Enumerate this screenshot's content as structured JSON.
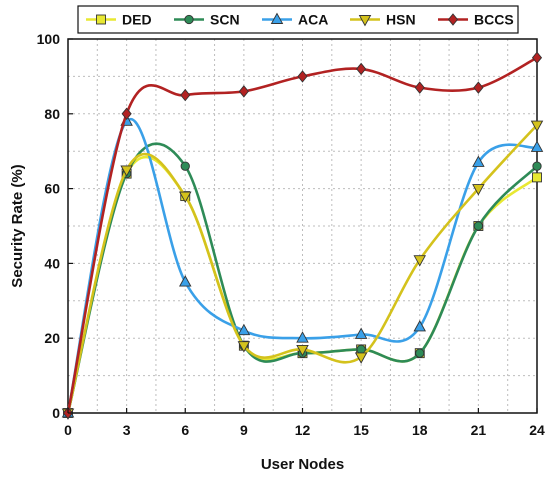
{
  "chart_data": {
    "type": "line",
    "xlabel": "User Nodes",
    "ylabel": "Security Rate (%)",
    "xlim": [
      0,
      24
    ],
    "ylim": [
      0,
      100
    ],
    "x_ticks": [
      0,
      3,
      6,
      9,
      12,
      15,
      18,
      21,
      24
    ],
    "y_ticks": [
      0,
      20,
      40,
      60,
      80,
      100
    ],
    "grid": true,
    "legend_position": "top",
    "x": [
      0,
      3,
      6,
      9,
      12,
      15,
      18,
      21,
      24
    ],
    "series": [
      {
        "name": "DED",
        "values": [
          0,
          64,
          58,
          18,
          16,
          17,
          16,
          50,
          63
        ],
        "color": "#e8e832",
        "marker": "square"
      },
      {
        "name": "SCN",
        "values": [
          0,
          64,
          66,
          18,
          16,
          17,
          16,
          50,
          66
        ],
        "color": "#2e8b57",
        "marker": "circle"
      },
      {
        "name": "ACA",
        "values": [
          0,
          78,
          35,
          22,
          20,
          21,
          23,
          67,
          71
        ],
        "color": "#3aa0e8",
        "marker": "triangle-up"
      },
      {
        "name": "HSN",
        "values": [
          0,
          65,
          58,
          18,
          17,
          15,
          41,
          60,
          77
        ],
        "color": "#d4c21c",
        "marker": "triangle-down"
      },
      {
        "name": "BCCS",
        "values": [
          0,
          80,
          85,
          86,
          90,
          92,
          87,
          87,
          95
        ],
        "color": "#b22222",
        "marker": "diamond"
      }
    ]
  }
}
